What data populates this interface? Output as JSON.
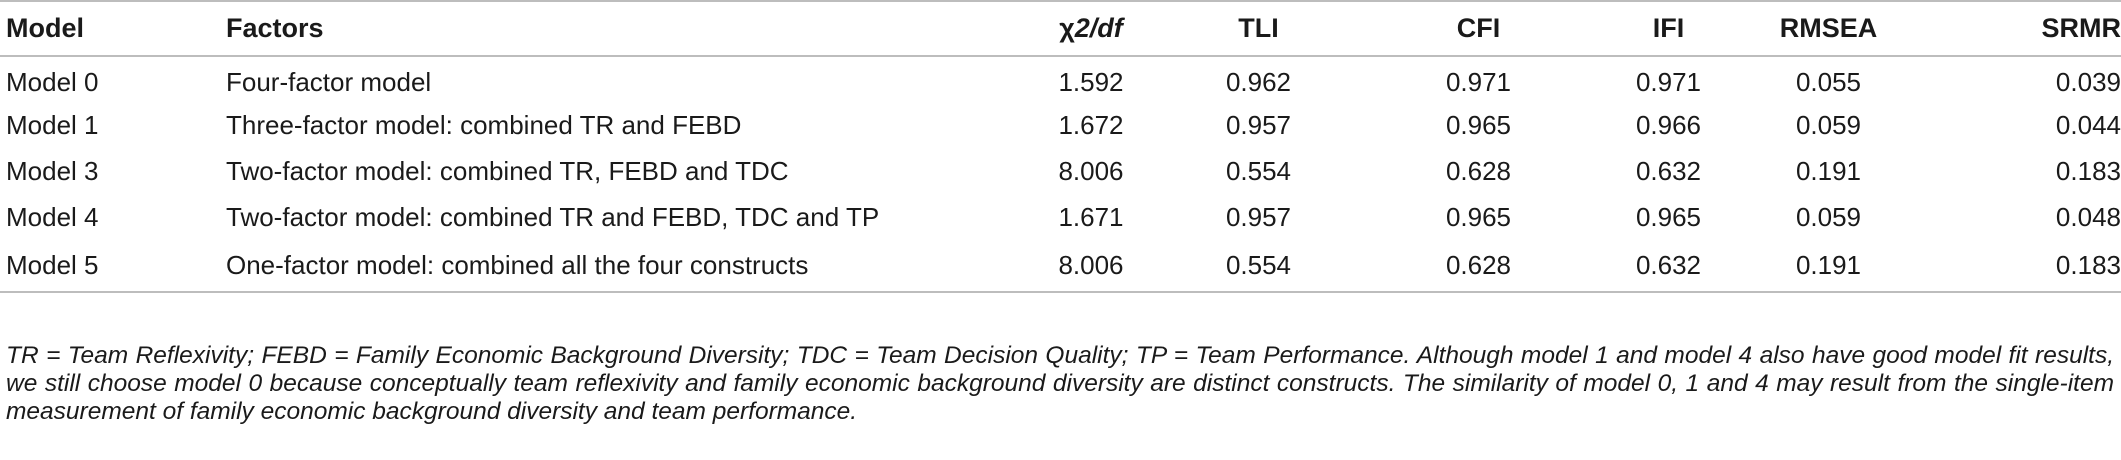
{
  "table": {
    "headers": {
      "model": "Model",
      "factors": "Factors",
      "chi_symbol": "χ",
      "chi_rest": "2/df",
      "tli": "TLI",
      "cfi": "CFI",
      "ifi": "IFI",
      "rmsea": "RMSEA",
      "srmr": "SRMR"
    },
    "rows": [
      {
        "model": "Model 0",
        "factors": "Four-factor model",
        "chi": "1.592",
        "tli": "0.962",
        "cfi": "0.971",
        "ifi": "0.971",
        "rmsea": "0.055",
        "srmr": "0.039"
      },
      {
        "model": "Model 1",
        "factors": "Three-factor model: combined TR and FEBD",
        "chi": "1.672",
        "tli": "0.957",
        "cfi": "0.965",
        "ifi": "0.966",
        "rmsea": "0.059",
        "srmr": "0.044"
      },
      {
        "model": "Model 3",
        "factors": "Two-factor model: combined TR, FEBD and TDC",
        "chi": "8.006",
        "tli": "0.554",
        "cfi": "0.628",
        "ifi": "0.632",
        "rmsea": "0.191",
        "srmr": "0.183"
      },
      {
        "model": "Model 4",
        "factors": "Two-factor model: combined TR and FEBD, TDC and TP",
        "chi": "1.671",
        "tli": "0.957",
        "cfi": "0.965",
        "ifi": "0.965",
        "rmsea": "0.059",
        "srmr": "0.048"
      },
      {
        "model": "Model 5",
        "factors": "One-factor model: combined all the four constructs",
        "chi": "8.006",
        "tli": "0.554",
        "cfi": "0.628",
        "ifi": "0.632",
        "rmsea": "0.191",
        "srmr": "0.183"
      }
    ],
    "footnote": "TR = Team Reflexivity; FEBD = Family Economic Background Diversity; TDC = Team Decision Quality; TP = Team Performance. Although model 1 and model 4 also have good model fit results, we still choose model 0 because conceptually team reflexivity and family economic background diversity are distinct constructs. The similarity of model 0, 1 and 4 may result from the single-item measurement of family economic background diversity and team performance."
  }
}
